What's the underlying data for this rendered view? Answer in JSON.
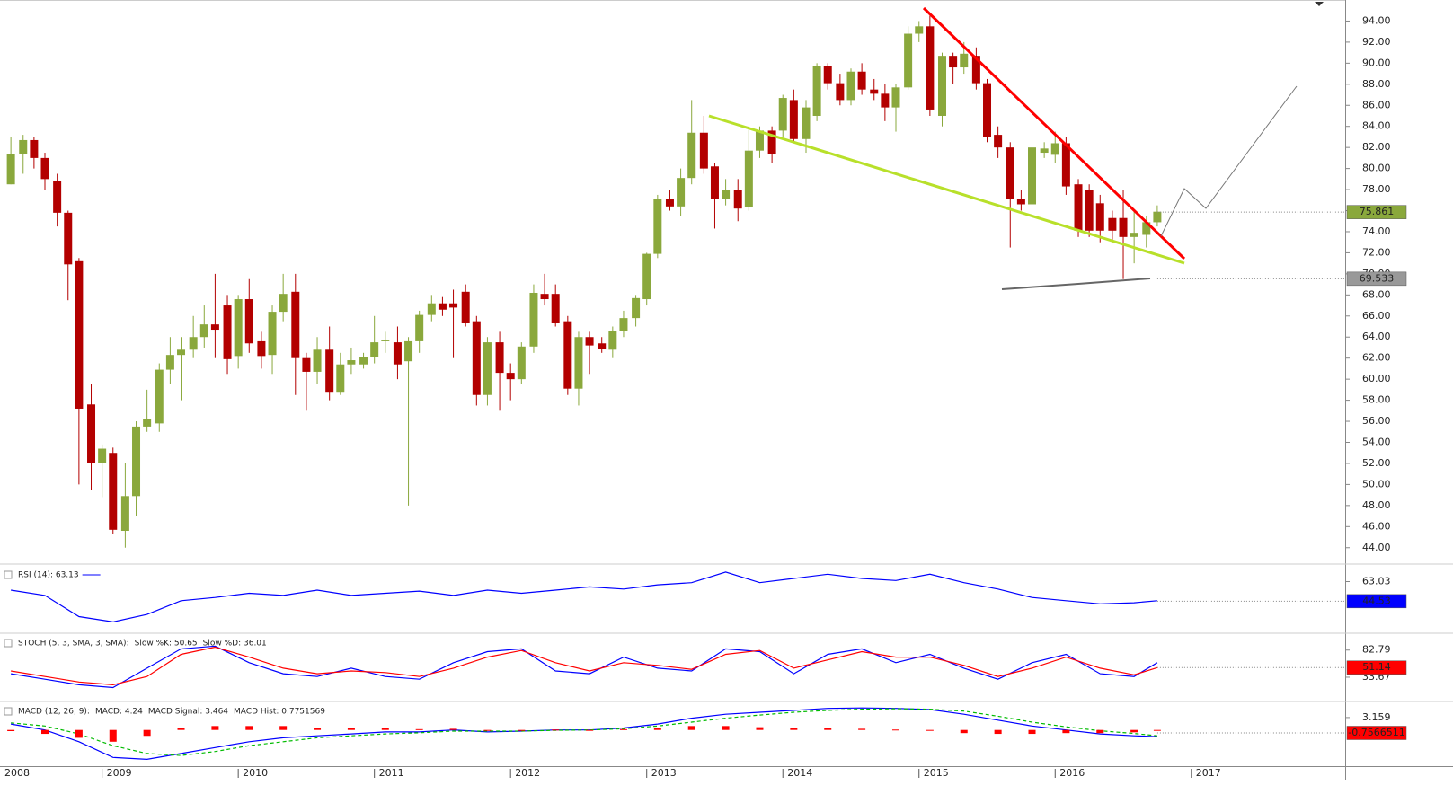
{
  "chart_data": [
    {
      "type": "candlestick",
      "up_color": "#8aa83c",
      "down_color": "#b30000",
      "xlim": [
        2008.25,
        2018.13
      ],
      "xticks": [
        2008,
        2009,
        2010,
        2011,
        2012,
        2013,
        2014,
        2015,
        2016,
        2017
      ],
      "ylim": [
        42.7,
        96
      ],
      "yticks": [
        {
          "value": 44,
          "label": "44.00"
        },
        {
          "value": 46,
          "label": "46.00"
        },
        {
          "value": 48,
          "label": "48.00"
        },
        {
          "value": 50,
          "label": "50.00"
        },
        {
          "value": 52,
          "label": "52.00"
        },
        {
          "value": 54,
          "label": "54.00"
        },
        {
          "value": 56,
          "label": "56.00"
        },
        {
          "value": 58,
          "label": "58.00"
        },
        {
          "value": 60,
          "label": "60.00"
        },
        {
          "value": 62,
          "label": "62.00"
        },
        {
          "value": 64,
          "label": "64.00"
        },
        {
          "value": 66,
          "label": "66.00"
        },
        {
          "value": 68,
          "label": "68.00"
        },
        {
          "value": 70,
          "label": "70.00"
        },
        {
          "value": 72,
          "label": "72.00"
        },
        {
          "value": 74,
          "label": "74.00"
        },
        {
          "value": 76,
          "label": "76.00"
        },
        {
          "value": 78,
          "label": "78.00"
        },
        {
          "value": 80,
          "label": "80.00"
        },
        {
          "value": 82,
          "label": "82.00"
        },
        {
          "value": 84,
          "label": "84.00"
        },
        {
          "value": 86,
          "label": "86.00"
        },
        {
          "value": 88,
          "label": "88.00"
        },
        {
          "value": 90,
          "label": "90.00"
        },
        {
          "value": 92,
          "label": "92.00"
        },
        {
          "value": 94,
          "label": "94.00"
        }
      ],
      "markers": [
        {
          "value": 75.861,
          "color": "#8aa83c",
          "text_color": "#ffffff"
        },
        {
          "value": 69.533,
          "color": "#999999",
          "text_color": "#000000"
        }
      ],
      "x": [
        2008.33,
        2008.42,
        2008.5,
        2008.58,
        2008.67,
        2008.75,
        2008.83,
        2008.92,
        2009.0,
        2009.08,
        2009.17,
        2009.25,
        2009.33,
        2009.42,
        2009.5,
        2009.58,
        2009.67,
        2009.75,
        2009.83,
        2009.92,
        2010.0,
        2010.08,
        2010.17,
        2010.25,
        2010.33,
        2010.42,
        2010.5,
        2010.58,
        2010.67,
        2010.75,
        2010.83,
        2010.92,
        2011.0,
        2011.08,
        2011.17,
        2011.25,
        2011.33,
        2011.42,
        2011.5,
        2011.58,
        2011.67,
        2011.75,
        2011.83,
        2011.92,
        2012.0,
        2012.08,
        2012.17,
        2012.25,
        2012.33,
        2012.42,
        2012.5,
        2012.58,
        2012.67,
        2012.75,
        2012.83,
        2012.92,
        2013.0,
        2013.08,
        2013.17,
        2013.25,
        2013.33,
        2013.42,
        2013.5,
        2013.58,
        2013.67,
        2013.75,
        2013.83,
        2013.92,
        2014.0,
        2014.08,
        2014.17,
        2014.25,
        2014.33,
        2014.42,
        2014.5,
        2014.58,
        2014.67,
        2014.75,
        2014.83,
        2014.92,
        2015.0,
        2015.08,
        2015.17,
        2015.25,
        2015.33,
        2015.42,
        2015.5,
        2015.58,
        2015.67,
        2015.75,
        2015.83,
        2015.92,
        2016.0,
        2016.08,
        2016.17,
        2016.25,
        2016.33,
        2016.42,
        2016.5,
        2016.58,
        2016.67,
        2016.75
      ],
      "open": [
        78.5,
        81.4,
        82.7,
        81.0,
        78.8,
        75.8,
        71.2,
        57.6,
        52.0,
        53.0,
        45.6,
        48.9,
        55.5,
        55.8,
        60.9,
        62.3,
        62.8,
        64.0,
        65.2,
        67.0,
        62.2,
        67.6,
        63.6,
        62.3,
        66.4,
        68.3,
        62.0,
        60.7,
        62.8,
        58.8,
        61.4,
        61.4,
        62.1,
        63.6,
        63.5,
        61.7,
        63.6,
        66.1,
        67.2,
        67.2,
        68.3,
        65.5,
        58.5,
        63.5,
        60.6,
        60.0,
        63.1,
        68.1,
        68.1,
        65.5,
        59.1,
        64.0,
        63.4,
        62.8,
        64.6,
        65.8,
        67.6,
        71.9,
        77.1,
        76.4,
        79.1,
        83.4,
        80.2,
        77.1,
        78.0,
        76.3,
        81.7,
        83.6,
        83.6,
        86.5,
        82.8,
        85.0,
        89.7,
        88.1,
        86.5,
        89.2,
        87.5,
        87.1,
        85.8,
        87.7,
        92.8,
        93.5,
        85.0,
        90.7,
        89.6,
        90.7,
        88.1,
        83.2,
        82.0,
        77.1,
        76.6,
        81.5,
        81.3,
        82.4,
        78.5,
        78.0,
        76.7,
        75.3,
        75.3,
        73.5,
        73.7,
        74.9
      ],
      "high": [
        83.0,
        83.2,
        83.0,
        81.5,
        79.5,
        76.0,
        71.5,
        59.5,
        53.8,
        53.5,
        52.0,
        56.0,
        59.0,
        61.5,
        64.0,
        64.0,
        66.0,
        67.0,
        70.0,
        68.0,
        68.0,
        69.5,
        64.5,
        67.0,
        70.0,
        70.0,
        62.5,
        64.0,
        65.0,
        62.5,
        63.0,
        62.5,
        66.0,
        64.5,
        65.0,
        64.0,
        66.5,
        68.0,
        67.8,
        68.5,
        69.0,
        66.0,
        64.0,
        64.5,
        61.5,
        63.5,
        69.0,
        70.0,
        69.0,
        66.0,
        64.5,
        64.5,
        64.0,
        65.0,
        66.5,
        68.0,
        72.0,
        77.5,
        78.0,
        80.0,
        86.5,
        85.0,
        80.5,
        79.0,
        79.0,
        84.0,
        84.0,
        84.0,
        87.0,
        87.5,
        86.5,
        90.0,
        90.0,
        89.0,
        89.5,
        90.0,
        88.5,
        88.0,
        88.0,
        93.5,
        94.0,
        94.5,
        91.0,
        91.0,
        92.0,
        91.5,
        88.5,
        84.0,
        82.5,
        78.0,
        82.5,
        82.5,
        83.5,
        83.0,
        79.0,
        78.5,
        77.5,
        76.0,
        78.0,
        76.0,
        75.5,
        76.5
      ],
      "low": [
        78.5,
        79.5,
        80.0,
        78.0,
        74.5,
        67.5,
        50.0,
        49.5,
        48.8,
        45.3,
        44.0,
        47.0,
        55.0,
        55.0,
        59.5,
        58.0,
        62.0,
        63.0,
        62.0,
        60.5,
        61.0,
        62.5,
        61.0,
        60.5,
        65.5,
        58.5,
        57.0,
        59.5,
        58.0,
        58.5,
        60.5,
        61.0,
        61.5,
        62.5,
        60.0,
        48.0,
        62.5,
        65.5,
        66.0,
        62.0,
        65.0,
        57.5,
        57.5,
        57.0,
        58.0,
        59.5,
        62.5,
        67.0,
        65.0,
        58.5,
        57.5,
        60.5,
        62.5,
        62.0,
        64.0,
        65.0,
        67.0,
        71.5,
        76.0,
        75.5,
        78.5,
        79.5,
        74.3,
        76.5,
        75.0,
        76.0,
        81.0,
        80.5,
        83.0,
        82.5,
        81.5,
        84.5,
        87.5,
        86.0,
        86.0,
        87.0,
        86.5,
        84.5,
        83.5,
        87.5,
        92.0,
        85.0,
        84.0,
        88.0,
        89.0,
        87.5,
        82.5,
        81.0,
        72.5,
        76.0,
        76.0,
        81.0,
        80.5,
        77.5,
        73.5,
        73.5,
        73.0,
        73.0,
        69.5,
        71.0,
        72.5,
        74.5
      ],
      "close": [
        81.4,
        82.7,
        81.0,
        79.0,
        75.8,
        70.9,
        57.2,
        52.0,
        53.4,
        45.7,
        48.9,
        55.5,
        56.2,
        60.9,
        62.3,
        62.8,
        64.0,
        65.2,
        64.7,
        61.9,
        67.6,
        63.4,
        62.2,
        66.4,
        68.1,
        62.0,
        60.7,
        62.8,
        58.8,
        61.4,
        61.8,
        62.1,
        63.5,
        63.7,
        61.4,
        63.6,
        66.1,
        67.2,
        66.6,
        66.8,
        65.3,
        58.5,
        63.5,
        60.6,
        60.0,
        63.1,
        68.2,
        67.6,
        65.3,
        59.1,
        64.0,
        63.2,
        62.9,
        64.6,
        65.8,
        67.7,
        71.9,
        77.1,
        76.4,
        79.1,
        83.4,
        80.0,
        77.1,
        78.0,
        76.2,
        81.7,
        83.6,
        81.4,
        86.7,
        82.8,
        85.8,
        89.7,
        88.1,
        86.5,
        89.2,
        87.5,
        87.1,
        85.8,
        87.7,
        92.8,
        93.5,
        85.6,
        90.7,
        89.6,
        90.9,
        88.1,
        83.0,
        82.0,
        77.1,
        76.6,
        82.0,
        81.9,
        82.4,
        78.3,
        74.1,
        74.1,
        74.1,
        74.1,
        73.5,
        73.9,
        74.9,
        75.9
      ]
    },
    {
      "type": "line",
      "xlim": [
        2008.25,
        2018.13
      ],
      "ylim": [
        16,
        77
      ],
      "yticks": [
        63.03
      ],
      "markers": [
        {
          "value": 44.53,
          "color": "#0000ff",
          "text_color": "#ffffff"
        }
      ],
      "x": [
        2008.33,
        2008.58,
        2008.83,
        2009.08,
        2009.33,
        2009.58,
        2009.83,
        2010.08,
        2010.33,
        2010.58,
        2010.83,
        2011.08,
        2011.33,
        2011.58,
        2011.83,
        2012.08,
        2012.33,
        2012.58,
        2012.83,
        2013.08,
        2013.33,
        2013.58,
        2013.83,
        2014.08,
        2014.33,
        2014.58,
        2014.83,
        2015.08,
        2015.33,
        2015.58,
        2015.83,
        2016.08,
        2016.33,
        2016.58,
        2016.75
      ],
      "series": [
        {
          "name": "RSI (14): 63.13",
          "color": "#0000ff",
          "values": [
            55,
            50,
            30,
            25,
            32,
            45,
            48,
            52,
            50,
            55,
            50,
            52,
            54,
            50,
            55,
            52,
            55,
            58,
            56,
            60,
            62,
            72,
            62,
            66,
            70,
            66,
            64,
            70,
            62,
            56,
            48,
            45,
            42,
            43,
            45
          ]
        }
      ]
    },
    {
      "type": "line",
      "title": "STOCH (5, 3, SMA, 3, SMA):",
      "xlim": [
        2008.25,
        2018.13
      ],
      "ylim": [
        -7,
        110
      ],
      "yticks": [
        82.79,
        33.67
      ],
      "markers": [
        {
          "value": 51.14,
          "color": "#ff0000",
          "text_color": "#ffffff"
        }
      ],
      "x": [
        2008.33,
        2008.58,
        2008.83,
        2009.08,
        2009.33,
        2009.58,
        2009.83,
        2010.08,
        2010.33,
        2010.58,
        2010.83,
        2011.08,
        2011.33,
        2011.58,
        2011.83,
        2012.08,
        2012.33,
        2012.58,
        2012.83,
        2013.08,
        2013.33,
        2013.58,
        2013.83,
        2014.08,
        2014.33,
        2014.58,
        2014.83,
        2015.08,
        2015.33,
        2015.58,
        2015.83,
        2016.08,
        2016.33,
        2016.58,
        2016.75
      ],
      "series": [
        {
          "name": "Slow %K: 50.65",
          "color": "#0000ff",
          "values": [
            40,
            30,
            20,
            15,
            50,
            85,
            90,
            60,
            40,
            35,
            50,
            35,
            30,
            60,
            80,
            85,
            45,
            40,
            70,
            50,
            45,
            85,
            80,
            40,
            75,
            85,
            60,
            75,
            50,
            30,
            60,
            75,
            40,
            35,
            60
          ]
        },
        {
          "name": "Slow %D: 36.01",
          "color": "#ff0000",
          "values": [
            45,
            35,
            25,
            20,
            35,
            75,
            88,
            70,
            50,
            40,
            45,
            42,
            35,
            50,
            70,
            82,
            60,
            45,
            60,
            55,
            48,
            75,
            82,
            50,
            65,
            80,
            70,
            70,
            55,
            35,
            50,
            70,
            50,
            38,
            51
          ]
        }
      ]
    },
    {
      "type": "line",
      "title": "MACD (12, 26, 9):",
      "xlim": [
        2008.25,
        2018.13
      ],
      "ylim": [
        -9,
        6.8
      ],
      "yticks": [
        3.159
      ],
      "markers": [
        {
          "value": -0.7566511,
          "color": "#ff0000",
          "text_color": "#ffffff"
        }
      ],
      "x": [
        2008.33,
        2008.58,
        2008.83,
        2009.08,
        2009.33,
        2009.58,
        2009.83,
        2010.08,
        2010.33,
        2010.58,
        2010.83,
        2011.08,
        2011.33,
        2011.58,
        2011.83,
        2012.08,
        2012.33,
        2012.58,
        2012.83,
        2013.08,
        2013.33,
        2013.58,
        2013.83,
        2014.08,
        2014.33,
        2014.58,
        2014.83,
        2015.08,
        2015.33,
        2015.58,
        2015.83,
        2016.08,
        2016.33,
        2016.58,
        2016.75
      ],
      "series": [
        {
          "name": "MACD: 4.24",
          "color": "#0000ff",
          "values": [
            1.5,
            0,
            -3,
            -7,
            -7.5,
            -6,
            -4.5,
            -3,
            -2,
            -1.5,
            -1,
            -0.5,
            -0.5,
            0,
            -0.5,
            -0.3,
            0,
            0,
            0.5,
            1.5,
            3,
            4,
            4.5,
            5,
            5.5,
            5.6,
            5.5,
            5.2,
            4,
            2.5,
            1,
            0,
            -1,
            -1.5,
            -1.7
          ]
        },
        {
          "name": "MACD Signal: 3.464",
          "color": "#00bb00",
          "dashed": true,
          "values": [
            1.8,
            1,
            -1,
            -4,
            -6,
            -6.5,
            -5.5,
            -4,
            -3,
            -2,
            -1.5,
            -1,
            -0.7,
            -0.3,
            -0.3,
            -0.3,
            -0.1,
            0,
            0.3,
            1,
            2,
            3,
            3.8,
            4.5,
            5,
            5.3,
            5.4,
            5.3,
            4.8,
            3.5,
            2,
            0.8,
            -0.2,
            -0.9,
            -1.5
          ]
        },
        {
          "name": "MACD Hist: 0.7751569",
          "color": "#ff0000",
          "type": "bar",
          "values": [
            -0.3,
            -1,
            -2,
            -3,
            -1.5,
            0.5,
            1,
            1,
            1,
            0.5,
            0.5,
            0.5,
            0.2,
            0.3,
            -0.2,
            0,
            0.1,
            0,
            0.2,
            0.5,
            1,
            1,
            0.7,
            0.5,
            0.5,
            0.3,
            0.1,
            -0.1,
            -0.8,
            -1,
            -1,
            -0.8,
            -0.8,
            -0.6,
            -0.2
          ]
        }
      ]
    }
  ]
}
